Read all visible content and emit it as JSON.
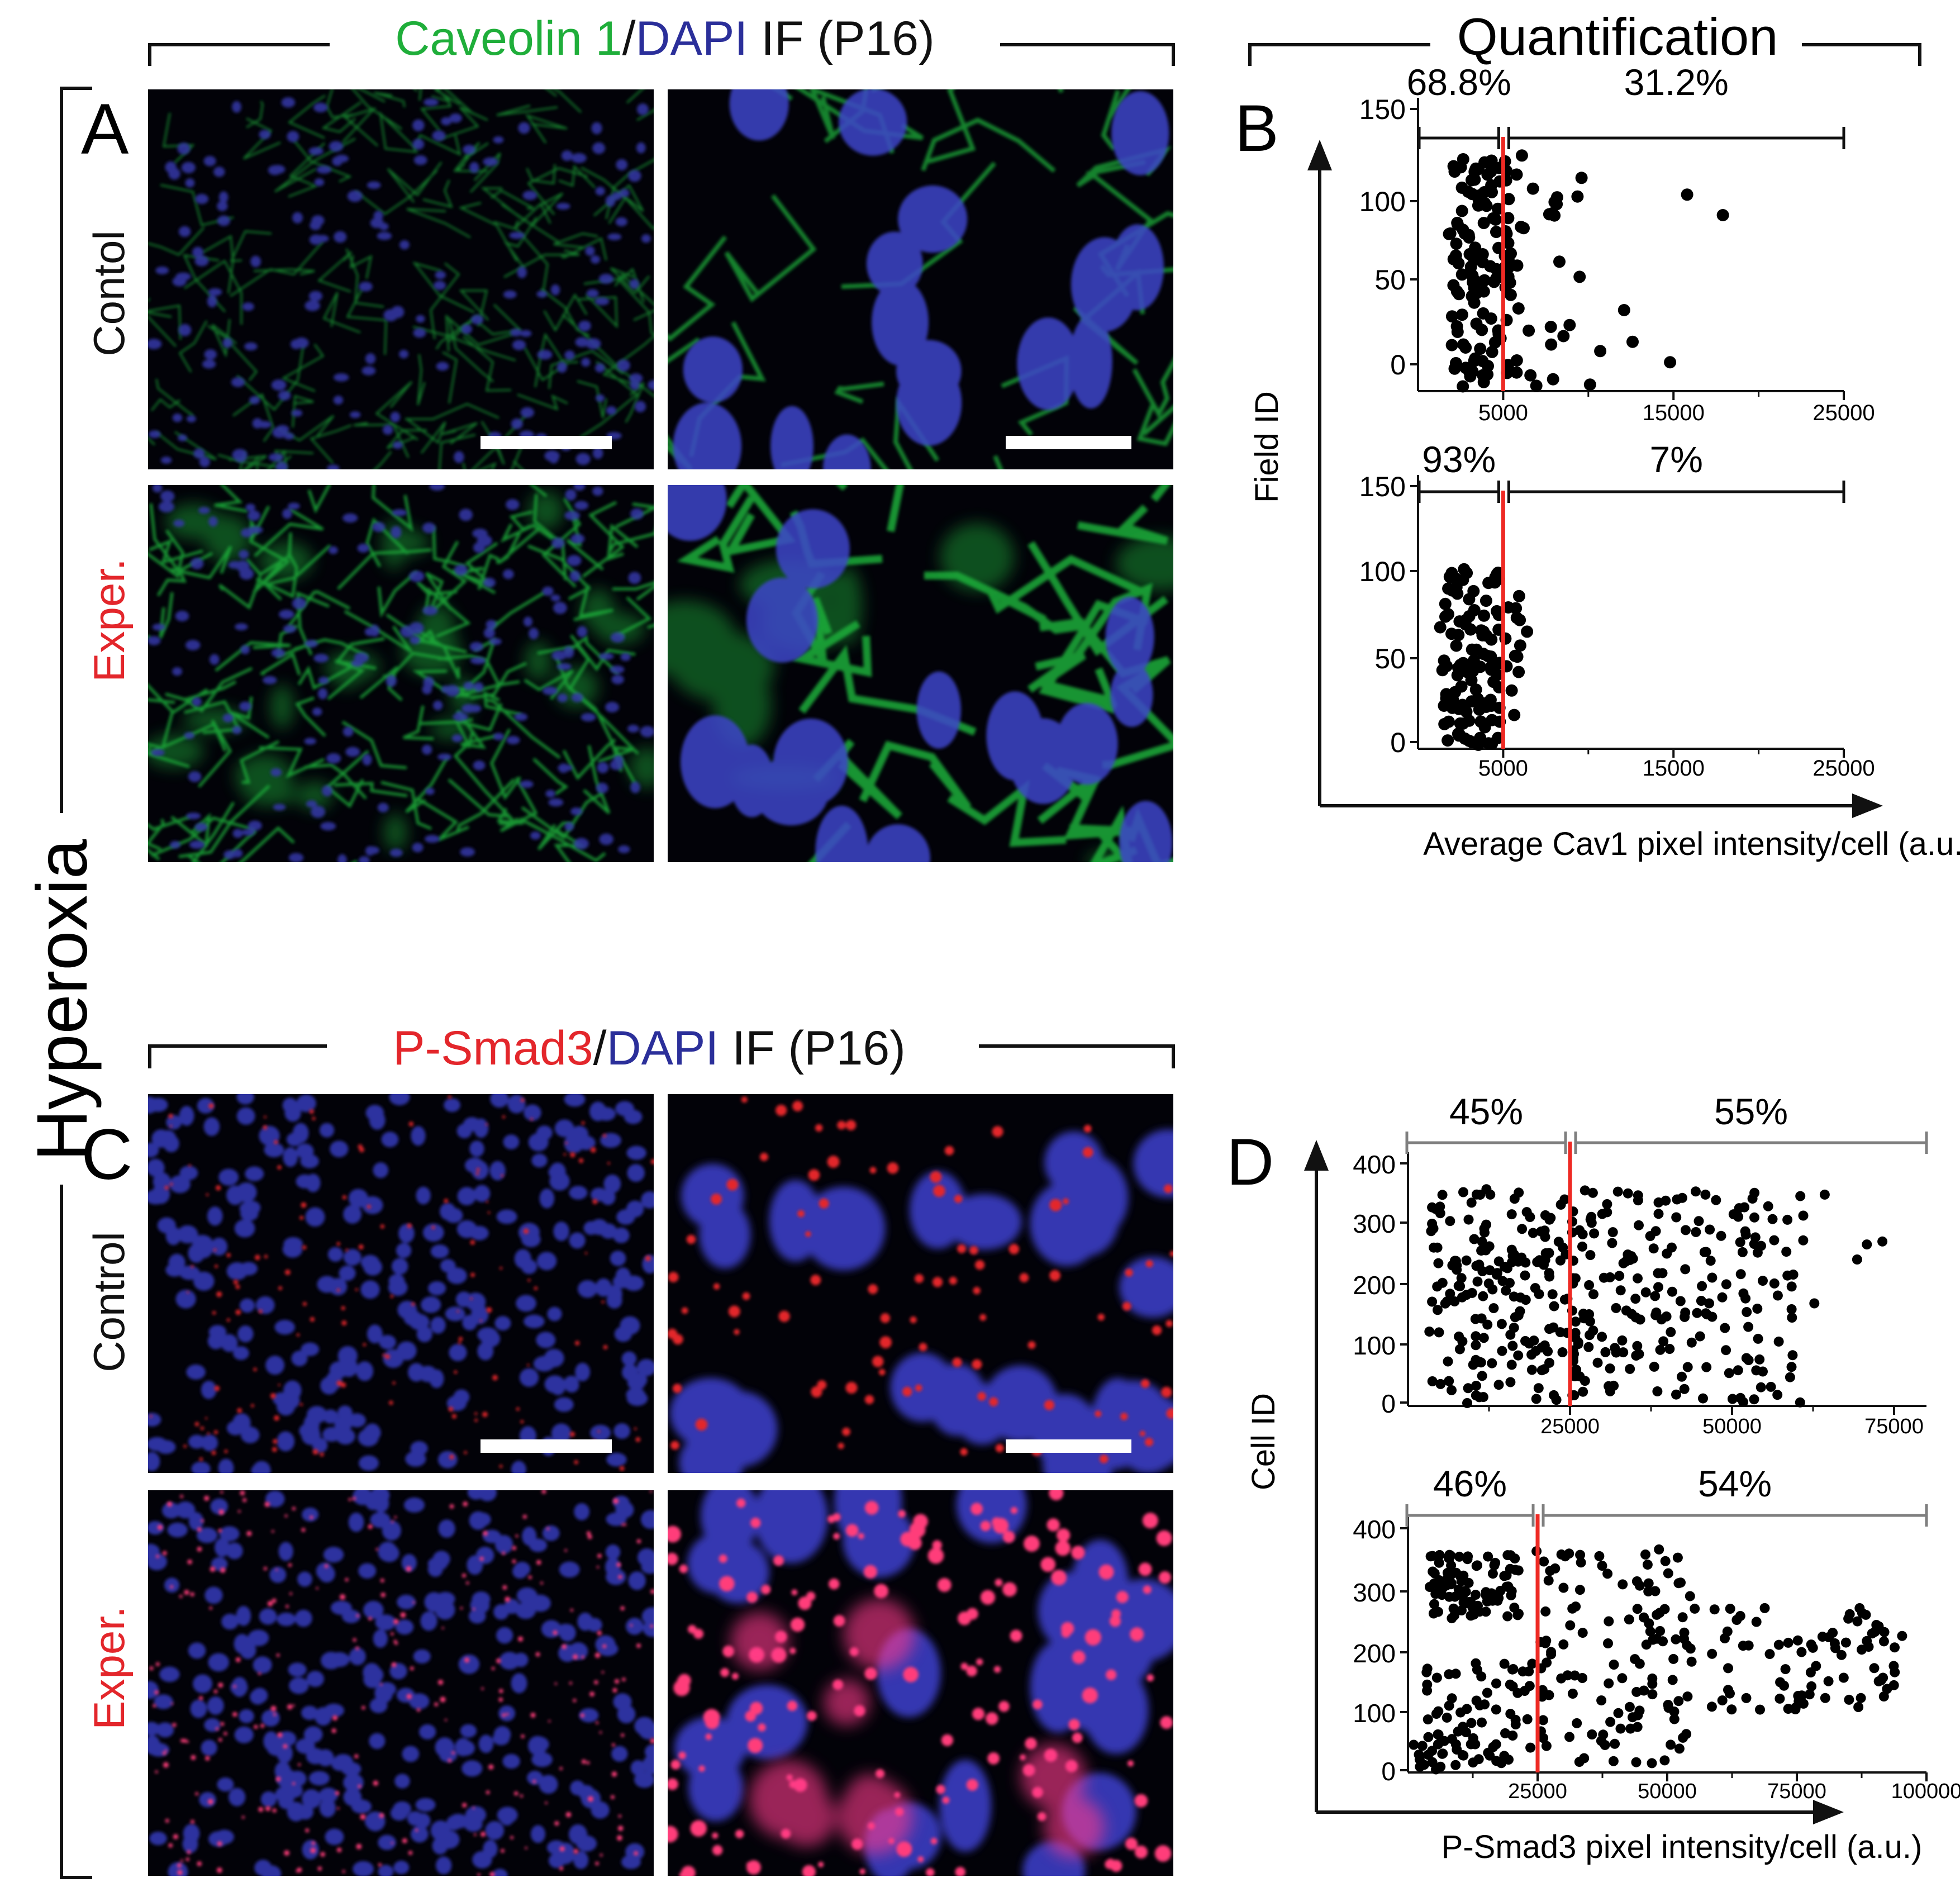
{
  "figure": {
    "side_label": "Hyperoxia",
    "headers": {
      "cav_title": [
        {
          "text": "Caveolin 1",
          "color": "#1fae3a"
        },
        {
          "text": "/",
          "color": "#111111"
        },
        {
          "text": "DAPI",
          "color": "#2b2f9a"
        },
        {
          "text": " IF (P16)",
          "color": "#111111"
        }
      ],
      "quant_title": "Quantification",
      "smad_title": [
        {
          "text": "P-Smad3",
          "color": "#e3262b"
        },
        {
          "text": "/",
          "color": "#111111"
        },
        {
          "text": "DAPI",
          "color": "#2b2f9a"
        },
        {
          "text": "  IF (P16)",
          "color": "#111111"
        }
      ]
    },
    "panel_letters": {
      "A": "A",
      "B": "B",
      "C": "C",
      "D": "D"
    },
    "row_labels": {
      "a_control": "Contol",
      "a_exper": "Exper.",
      "c_control": "Control",
      "c_exper": "Exper."
    },
    "colors": {
      "cav1_stain": "#1fae3a",
      "dapi_stain": "#2b2f9a",
      "psmad3_stain": "#e3262b",
      "threshold_line": "#ee2a24",
      "points": "#000000"
    },
    "micrographs": [
      {
        "id": "a-control-low",
        "stain": "cav1",
        "magnification": "low",
        "scale_bar": true
      },
      {
        "id": "a-control-high",
        "stain": "cav1",
        "magnification": "high",
        "scale_bar": true
      },
      {
        "id": "a-exper-low",
        "stain": "cav1",
        "magnification": "low",
        "scale_bar": false
      },
      {
        "id": "a-exper-high",
        "stain": "cav1",
        "magnification": "high",
        "scale_bar": false
      },
      {
        "id": "c-control-low",
        "stain": "psmad3",
        "magnification": "low",
        "scale_bar": true
      },
      {
        "id": "c-control-high",
        "stain": "psmad3",
        "magnification": "high",
        "scale_bar": true
      },
      {
        "id": "c-exper-low",
        "stain": "psmad3",
        "magnification": "low",
        "scale_bar": false
      },
      {
        "id": "c-exper-high",
        "stain": "psmad3",
        "magnification": "high",
        "scale_bar": false
      }
    ]
  },
  "chart_data": [
    {
      "type": "scatter",
      "panel": "B",
      "subplot": "top",
      "ylabel": "Field ID",
      "xlabel": "Average Cav1  pixel intensity/cell (a.u.)",
      "xticks": [
        "5000",
        "15000",
        "25000"
      ],
      "yticks": [
        "0",
        "50",
        "100",
        "150"
      ],
      "xlim": [
        0,
        25000
      ],
      "ylim": [
        0,
        150
      ],
      "threshold_x": 5000,
      "brackets": [
        {
          "label": "68.8%",
          "from": 0,
          "to": 5000
        },
        {
          "label": "31.2%",
          "from": 5000,
          "to": 25000
        }
      ],
      "n_points": 130,
      "points": [
        [
          2650,
          123
        ],
        [
          3400,
          118
        ],
        [
          4300,
          109
        ],
        [
          6100,
          125
        ],
        [
          9600,
          113
        ],
        [
          15800,
          104
        ],
        [
          17900,
          93
        ],
        [
          7900,
          94
        ],
        [
          6200,
          86
        ],
        [
          5300,
          78
        ],
        [
          8300,
          68
        ],
        [
          12100,
          42
        ],
        [
          12600,
          25
        ],
        [
          14800,
          14
        ],
        [
          10100,
          2
        ],
        [
          8900,
          34
        ],
        [
          7800,
          33
        ],
        [
          10700,
          20
        ],
        [
          6500,
          31
        ],
        [
          6600,
          7
        ],
        [
          5800,
          15
        ],
        [
          4100,
          12
        ],
        [
          3200,
          9
        ],
        [
          2800,
          11
        ],
        [
          3300,
          46
        ],
        [
          3900,
          58
        ],
        [
          3800,
          72
        ],
        [
          4600,
          64
        ]
      ]
    },
    {
      "type": "scatter",
      "panel": "B",
      "subplot": "bottom",
      "ylabel": "Field ID",
      "xlabel": "Average Cav1  pixel intensity/cell (a.u.)",
      "xticks": [
        "5000",
        "15000",
        "25000"
      ],
      "yticks": [
        "0",
        "50",
        "100",
        "150"
      ],
      "xlim": [
        0,
        25000
      ],
      "ylim": [
        0,
        150
      ],
      "threshold_x": 5000,
      "brackets": [
        {
          "label": "93%",
          "from": 0,
          "to": 5000
        },
        {
          "label": "7%",
          "from": 5000,
          "to": 25000
        }
      ],
      "n_points": 105,
      "points": [
        [
          1600,
          82
        ],
        [
          2700,
          102
        ],
        [
          4700,
          100
        ],
        [
          5300,
          80
        ],
        [
          5800,
          74
        ],
        [
          6400,
          66
        ],
        [
          6000,
          58
        ],
        [
          5700,
          52
        ],
        [
          5200,
          46
        ],
        [
          4300,
          44
        ],
        [
          5500,
          32
        ],
        [
          3600,
          21
        ],
        [
          1800,
          14
        ],
        [
          2400,
          6
        ],
        [
          3000,
          3
        ],
        [
          4800,
          14
        ]
      ]
    },
    {
      "type": "scatter",
      "panel": "D",
      "subplot": "top",
      "ylabel": "Cell ID",
      "xlabel": "P-Smad3  pixel intensity/cell (a.u.)",
      "xticks": [
        "25000",
        "50000",
        "75000"
      ],
      "yticks": [
        "0",
        "100",
        "200",
        "300",
        "400"
      ],
      "xlim": [
        0,
        80000
      ],
      "ylim": [
        0,
        400
      ],
      "threshold_x": 25000,
      "brackets": [
        {
          "label": "45%",
          "from": 0,
          "to": 25000
        },
        {
          "label": "55%",
          "from": 25000,
          "to": 80000
        }
      ],
      "n_points": 360,
      "points": [
        [
          73200,
          270
        ],
        [
          70800,
          265
        ],
        [
          69300,
          240
        ],
        [
          64300,
          348
        ],
        [
          62700,
          167
        ],
        [
          59200,
          195
        ],
        [
          56500,
          272
        ],
        [
          60500,
          2
        ],
        [
          56000,
          28
        ],
        [
          45900,
          348
        ],
        [
          41500,
          340
        ],
        [
          4500,
          195
        ],
        [
          3300,
          120
        ],
        [
          12100,
          357
        ],
        [
          27300,
          355
        ],
        [
          25800,
          110
        ],
        [
          19800,
          8
        ],
        [
          22500,
          14
        ],
        [
          35200,
          80
        ],
        [
          48900,
          126
        ]
      ]
    },
    {
      "type": "scatter",
      "panel": "D",
      "subplot": "bottom",
      "ylabel": "Cell ID",
      "xlabel": "P-Smad3  pixel intensity/cell (a.u.)",
      "xticks": [
        "25000",
        "50000",
        "75000",
        "100000"
      ],
      "yticks": [
        "0",
        "100",
        "200",
        "300",
        "400"
      ],
      "xlim": [
        0,
        100000
      ],
      "ylim": [
        0,
        400
      ],
      "threshold_x": 25000,
      "brackets": [
        {
          "label": "46%",
          "from": 0,
          "to": 25000
        },
        {
          "label": "54%",
          "from": 25000,
          "to": 100000
        }
      ],
      "n_points": 360,
      "points": [
        [
          95300,
          222
        ],
        [
          91800,
          213
        ],
        [
          90800,
          147
        ],
        [
          87600,
          260
        ],
        [
          85200,
          258
        ],
        [
          68800,
          268
        ],
        [
          64100,
          255
        ],
        [
          61100,
          218
        ],
        [
          48400,
          365
        ],
        [
          54500,
          201
        ],
        [
          44700,
          176
        ],
        [
          4200,
          303
        ],
        [
          6800,
          302
        ],
        [
          9900,
          353
        ],
        [
          20600,
          350
        ],
        [
          24800,
          362
        ],
        [
          26200,
          345
        ],
        [
          33200,
          356
        ],
        [
          3100,
          9
        ],
        [
          1100,
          42
        ]
      ]
    }
  ]
}
